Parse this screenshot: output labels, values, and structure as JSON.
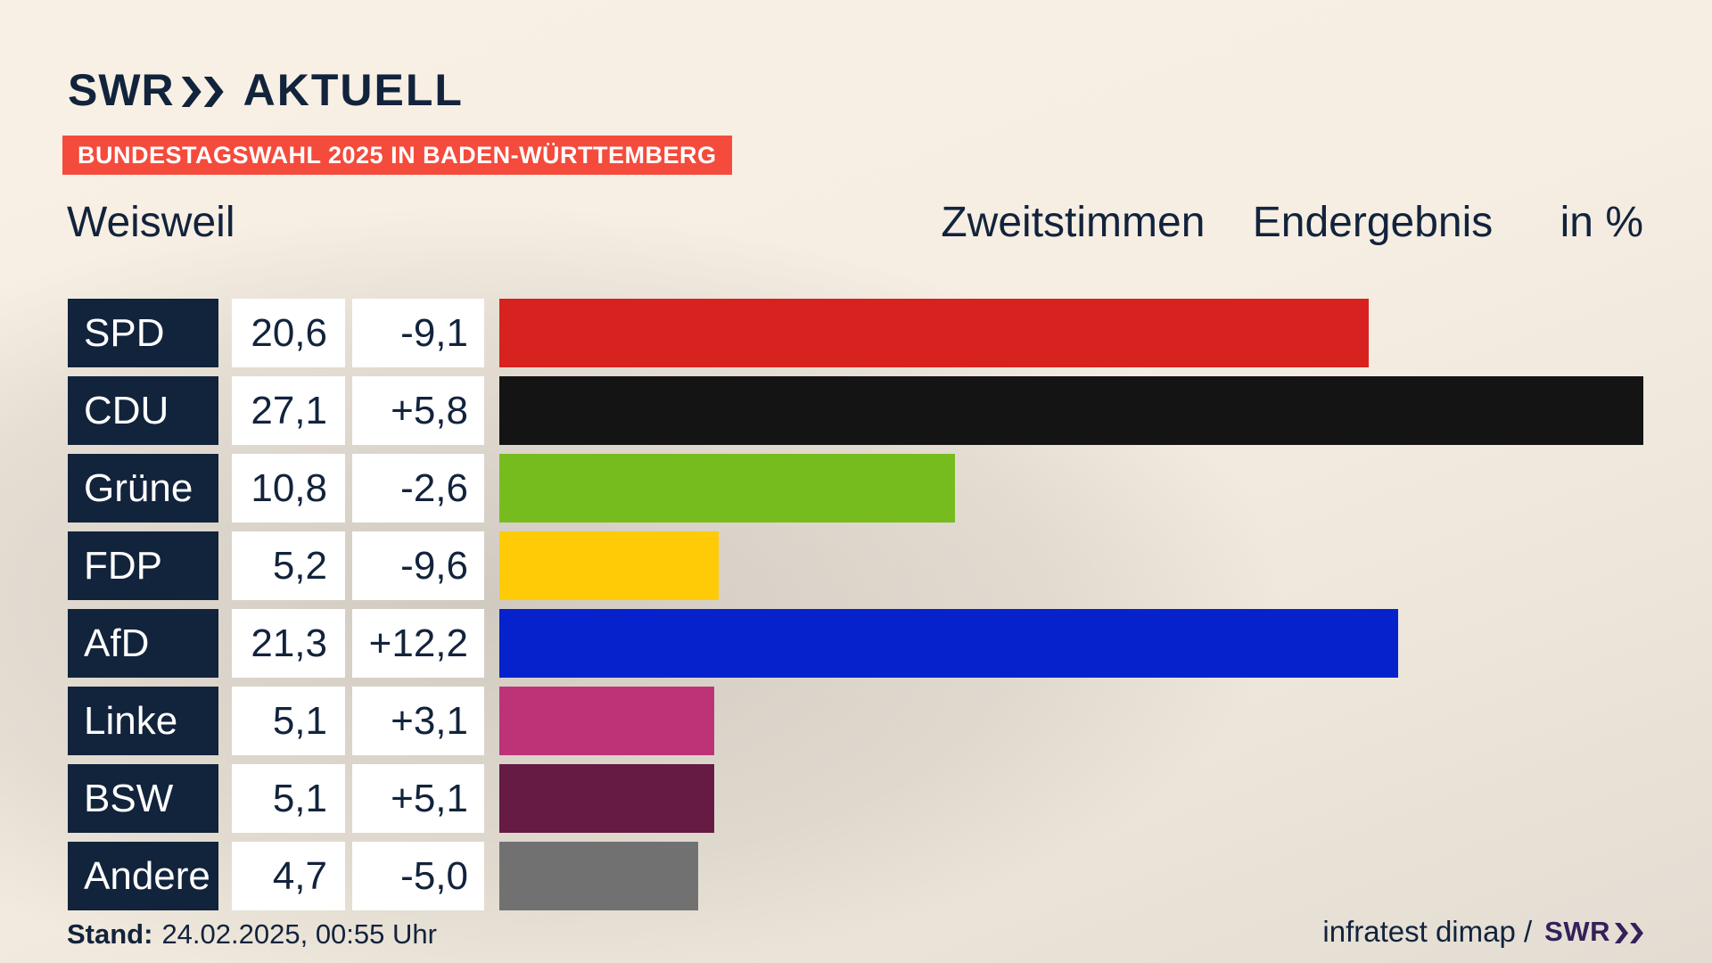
{
  "header": {
    "brand": "SWR",
    "brand_name": "AKTUELL",
    "badge": "BUNDESTAGSWAHL 2025 IN BADEN-WÜRTTEMBERG"
  },
  "title": {
    "left": "Weisweil",
    "right_parts": [
      "Zweitstimmen",
      "Endergebnis",
      "in %"
    ]
  },
  "footer": {
    "stand_label": "Stand:",
    "stand_value": "24.02.2025, 00:55 Uhr",
    "source": "infratest dimap /",
    "source_brand": "SWR"
  },
  "colors": {
    "accent_badge": "#f44b3c",
    "navy": "#12233c",
    "label_box_bg": "#12233c",
    "value_box_bg": "#ffffff",
    "footer_brand": "#32215a",
    "background_light": "#f7efe3",
    "background_dark": "#d9d5cf"
  },
  "chart_data": {
    "type": "bar",
    "orientation": "horizontal",
    "title": "Weisweil",
    "subtitle": "Zweitstimmen Endergebnis in %",
    "unit": "%",
    "value_axis_max": 27.1,
    "grid": false,
    "legend": false,
    "categories": [
      "SPD",
      "CDU",
      "Grüne",
      "FDP",
      "AfD",
      "Linke",
      "BSW",
      "Andere"
    ],
    "series": [
      {
        "party": "SPD",
        "value": 20.6,
        "value_label": "20,6",
        "diff": -9.1,
        "diff_label": "-9,1",
        "color": "#d7221f"
      },
      {
        "party": "CDU",
        "value": 27.1,
        "value_label": "27,1",
        "diff": 5.8,
        "diff_label": "+5,8",
        "color": "#141414"
      },
      {
        "party": "Grüne",
        "value": 10.8,
        "value_label": "10,8",
        "diff": -2.6,
        "diff_label": "-2,6",
        "color": "#77bc1f"
      },
      {
        "party": "FDP",
        "value": 5.2,
        "value_label": "5,2",
        "diff": -9.6,
        "diff_label": "-9,6",
        "color": "#ffcb06"
      },
      {
        "party": "AfD",
        "value": 21.3,
        "value_label": "21,3",
        "diff": 12.2,
        "diff_label": "+12,2",
        "color": "#0622cd"
      },
      {
        "party": "Linke",
        "value": 5.1,
        "value_label": "5,1",
        "diff": 3.1,
        "diff_label": "+3,1",
        "color": "#be3278"
      },
      {
        "party": "BSW",
        "value": 5.1,
        "value_label": "5,1",
        "diff": 5.1,
        "diff_label": "+5,1",
        "color": "#651b43"
      },
      {
        "party": "Andere",
        "value": 4.7,
        "value_label": "4,7",
        "diff": -5.0,
        "diff_label": "-5,0",
        "color": "#717171"
      }
    ]
  }
}
